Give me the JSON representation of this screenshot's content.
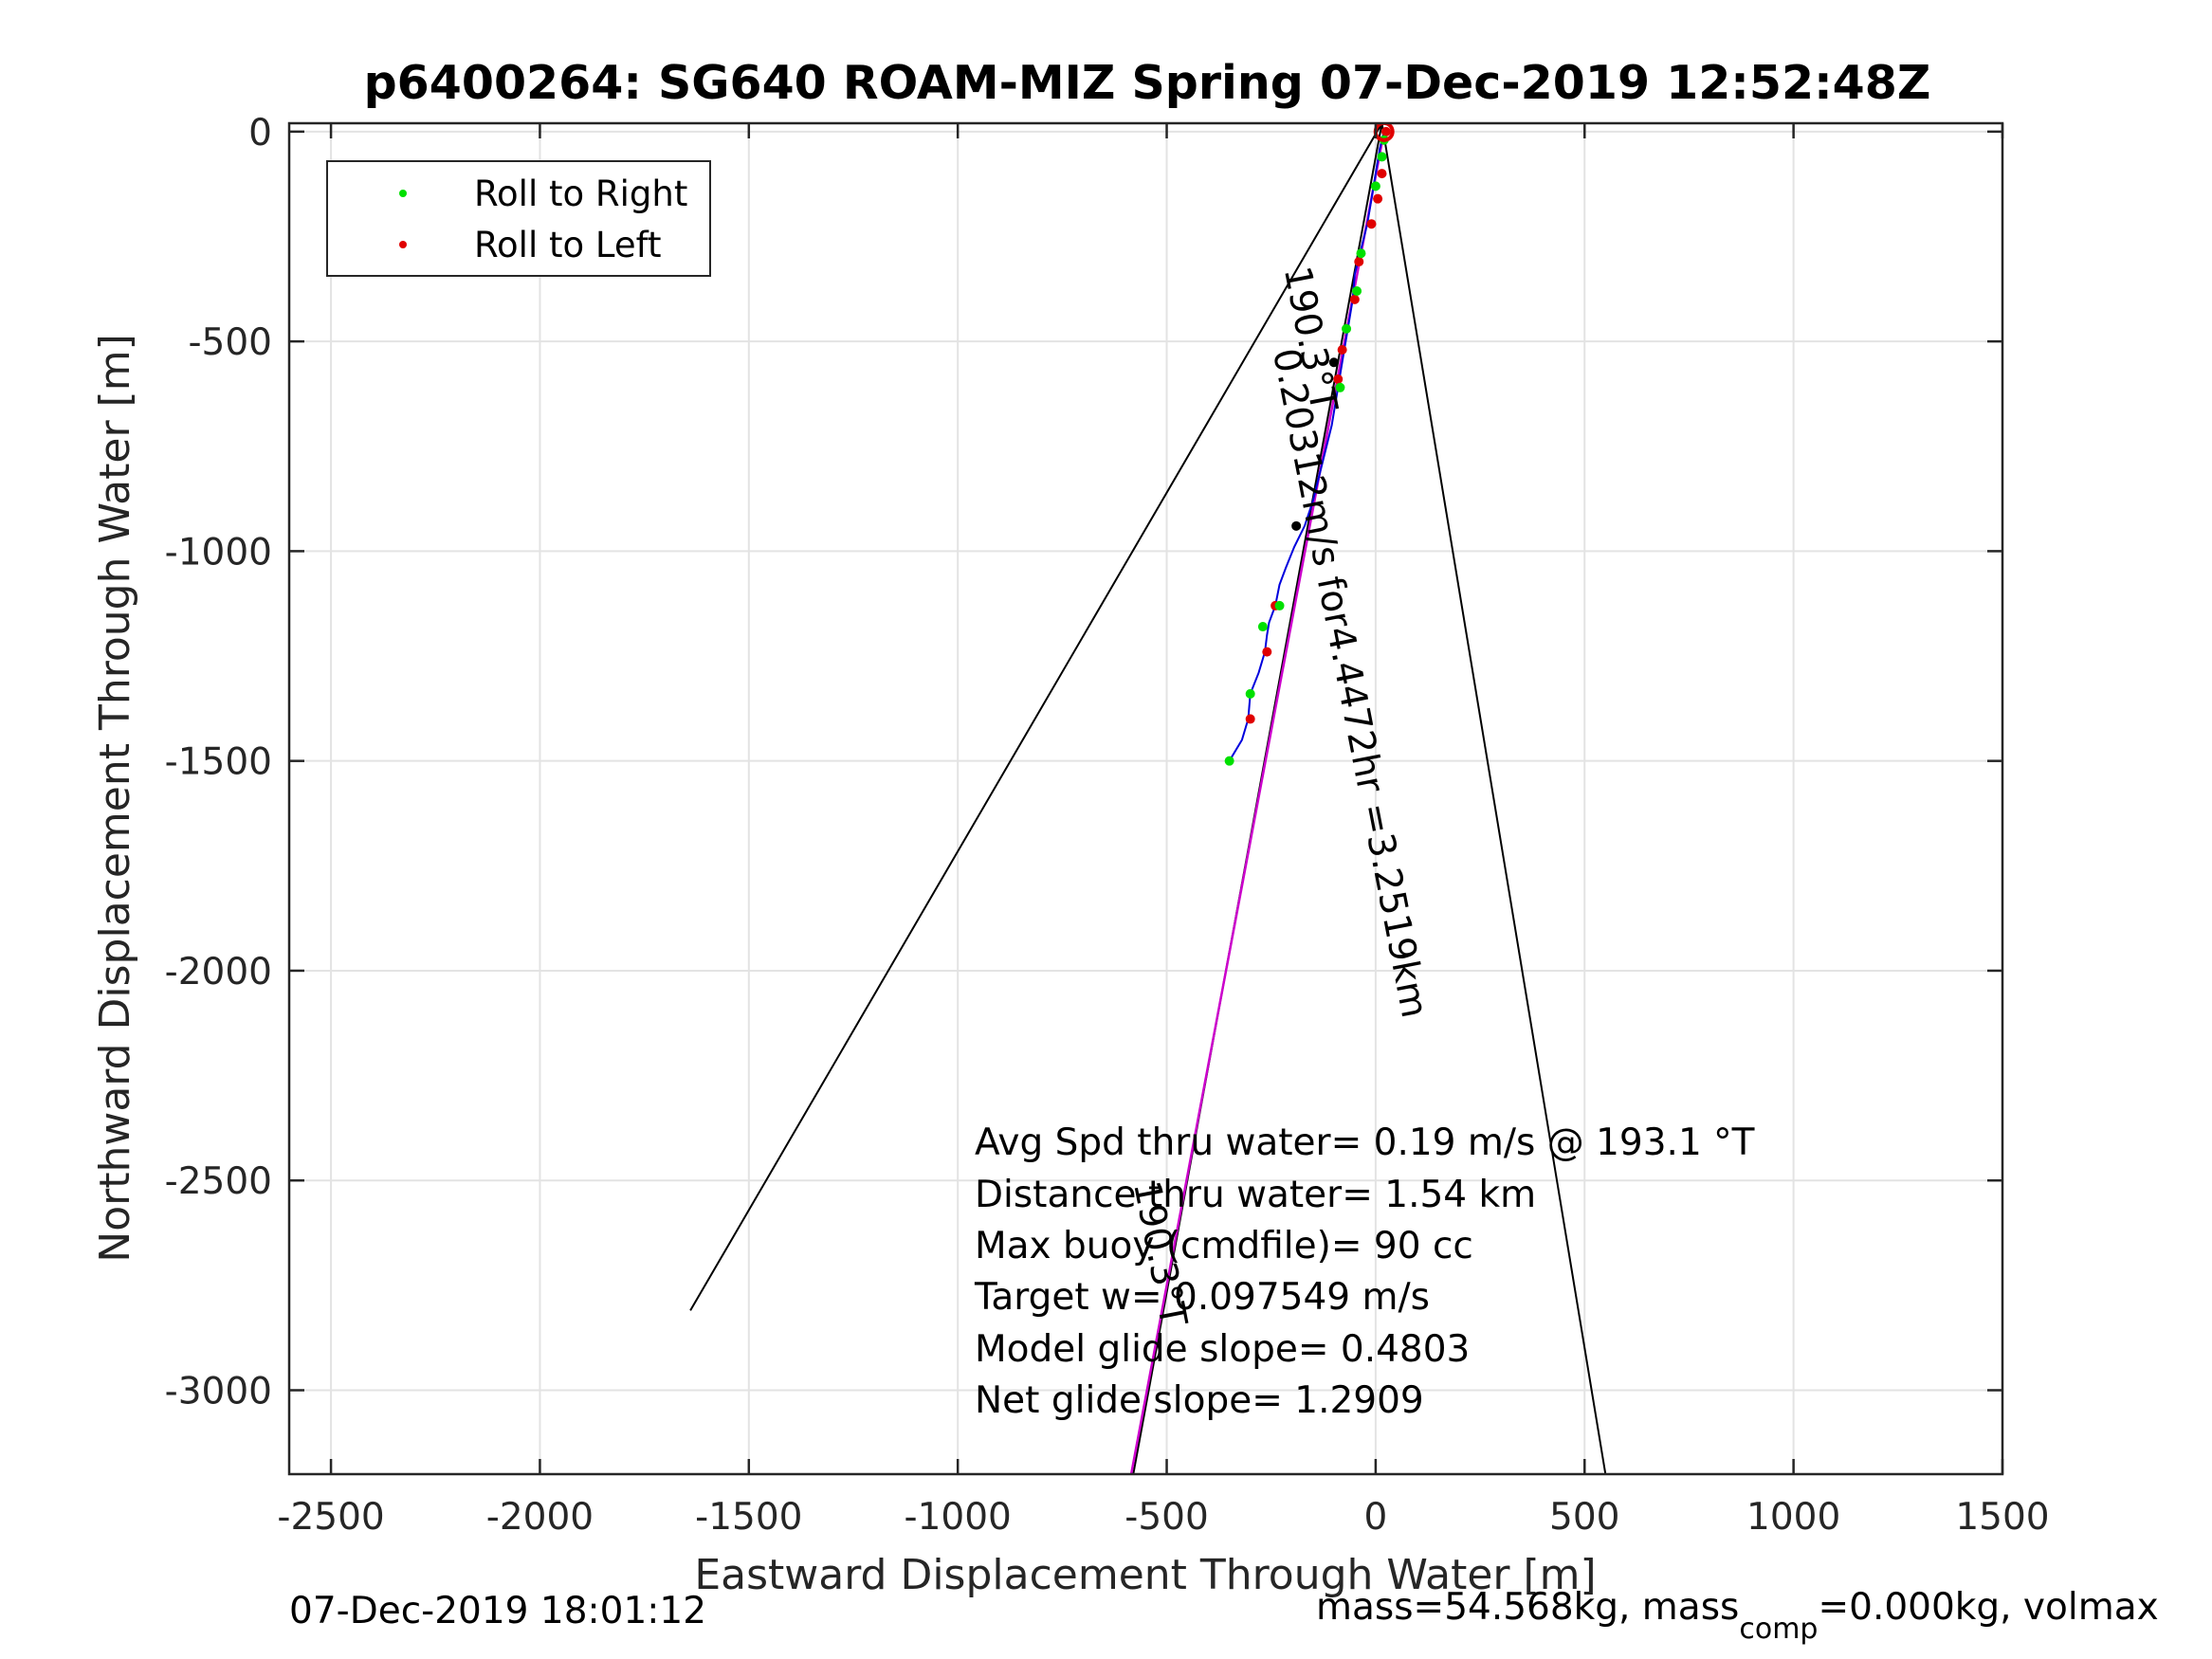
{
  "chart_data": {
    "type": "line",
    "title": "p6400264: SG640 ROAM-MIZ Spring 07-Dec-2019 12:52:48Z",
    "xlabel": "Eastward Displacement Through Water [m]",
    "ylabel": "Northward Displacement Through Water [m]",
    "xlim": [
      -2600,
      1500
    ],
    "ylim": [
      -3200,
      20
    ],
    "xticks": [
      -2500,
      -2000,
      -1500,
      -1000,
      -500,
      0,
      500,
      1000,
      1500
    ],
    "yticks": [
      0,
      -500,
      -1000,
      -1500,
      -2000,
      -2500,
      -3000
    ],
    "xtick_labels": [
      "-2500",
      "-2000",
      "-1500",
      "-1000",
      "-500",
      "0",
      "500",
      "1000",
      "1500"
    ],
    "ytick_labels": [
      "0",
      "-500",
      "-1000",
      "-1500",
      "-2000",
      "-2500",
      "-3000"
    ],
    "grid": true,
    "legend": {
      "position": "top-left",
      "entries": [
        {
          "label": "Roll to Right",
          "color": "#00e000"
        },
        {
          "label": "Roll to Left",
          "color": "#e00000"
        }
      ]
    },
    "track": {
      "color": "#0000dd",
      "points": [
        [
          20,
          0
        ],
        [
          10,
          -40
        ],
        [
          0,
          -100
        ],
        [
          -10,
          -160
        ],
        [
          -20,
          -220
        ],
        [
          -35,
          -280
        ],
        [
          -50,
          -340
        ],
        [
          -55,
          -400
        ],
        [
          -65,
          -460
        ],
        [
          -75,
          -520
        ],
        [
          -85,
          -580
        ],
        [
          -95,
          -640
        ],
        [
          -105,
          -700
        ],
        [
          -120,
          -760
        ],
        [
          -135,
          -820
        ],
        [
          -150,
          -880
        ],
        [
          -170,
          -940
        ],
        [
          -195,
          -990
        ],
        [
          -215,
          -1040
        ],
        [
          -230,
          -1080
        ],
        [
          -240,
          -1130
        ],
        [
          -255,
          -1170
        ],
        [
          -260,
          -1200
        ],
        [
          -265,
          -1240
        ],
        [
          -280,
          -1290
        ],
        [
          -300,
          -1340
        ],
        [
          -305,
          -1400
        ],
        [
          -320,
          -1450
        ],
        [
          -350,
          -1500
        ]
      ]
    },
    "roll_right": [
      [
        20,
        -20
      ],
      [
        15,
        -60
      ],
      [
        0,
        -130
      ],
      [
        -35,
        -290
      ],
      [
        -45,
        -380
      ],
      [
        -70,
        -470
      ],
      [
        -85,
        -610
      ],
      [
        -230,
        -1130
      ],
      [
        -270,
        -1180
      ],
      [
        -300,
        -1340
      ],
      [
        -350,
        -1500
      ]
    ],
    "roll_left": [
      [
        25,
        0
      ],
      [
        15,
        -100
      ],
      [
        5,
        -160
      ],
      [
        -10,
        -220
      ],
      [
        -40,
        -310
      ],
      [
        -50,
        -400
      ],
      [
        -80,
        -520
      ],
      [
        -90,
        -590
      ],
      [
        -240,
        -1130
      ],
      [
        -260,
        -1240
      ],
      [
        -300,
        -1400
      ]
    ],
    "waypoints_black": [
      [
        -100,
        -550
      ],
      [
        -190,
        -940
      ]
    ],
    "cone_lines": [
      {
        "from": [
          15,
          20
        ],
        "to": [
          -1640,
          -2810
        ],
        "color": "#000000"
      },
      {
        "from": [
          15,
          20
        ],
        "to": [
          550,
          -3200
        ],
        "color": "#000000"
      },
      {
        "from": [
          15,
          20
        ],
        "to": [
          -580,
          -3200
        ],
        "color": "#000000"
      }
    ],
    "heading_line": {
      "from": [
        20,
        0
      ],
      "to": [
        -585,
        -3200
      ],
      "color": "#cc00cc"
    },
    "rotated_labels": [
      {
        "text": "190.3°T",
        "at": [
          -185,
          -500
        ],
        "angle": 79
      },
      {
        "text": "0.20312m/s for4.4472hr =3.2519km",
        "at": [
          -90,
          -1320
        ],
        "angle": 79
      },
      {
        "text": "190.3°T",
        "at": [
          -545,
          -2680
        ],
        "angle": 79
      }
    ],
    "annotations": [
      "Avg Spd thru water=  0.19 m/s @ 193.1 °T",
      "Distance thru water=  1.54 km",
      "Max buoy (cmdfile)= 90 cc",
      "Target w= 0.097549 m/s",
      "Model glide slope= 0.4803",
      "Net glide slope= 1.2909"
    ]
  },
  "footer": {
    "timestamp": "07-Dec-2019 18:01:12",
    "mass_text_before": "mass=54.568kg, mass",
    "mass_subscript": "comp",
    "mass_text_after": "=0.000kg, volmax"
  }
}
